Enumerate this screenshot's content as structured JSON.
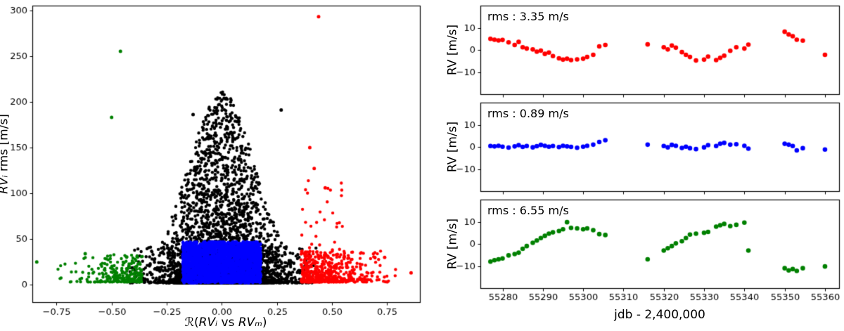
{
  "figure": {
    "background": "#ffffff",
    "text_color": "#000000"
  },
  "chart_data": [
    {
      "type": "scatter",
      "xlabel_parts": {
        "p1": "ℛ(",
        "p2": "RVᵢ",
        "p3": " vs ",
        "p4": "RVₘ",
        "p5": ")"
      },
      "ylabel_parts": {
        "italic": "RVᵢ",
        "rest": " rms [m/s]"
      },
      "xlim": [
        -0.86,
        0.9
      ],
      "ylim": [
        -19,
        305
      ],
      "xticks": {
        "values": [
          -0.75,
          -0.5,
          -0.25,
          0.0,
          0.25,
          0.5,
          0.75
        ],
        "labels": [
          "−0.75",
          "−0.50",
          "−0.25",
          "0.00",
          "0.25",
          "0.50",
          "0.75"
        ]
      },
      "yticks": {
        "values": [
          0,
          50,
          100,
          150,
          200,
          250,
          300
        ],
        "labels": [
          "0",
          "50",
          "100",
          "150",
          "200",
          "250",
          "300"
        ]
      },
      "marker_radius": 2.2,
      "colors": {
        "center": "#000000",
        "selected": "#0000ff",
        "left_tail": "#008000",
        "right_tail": "#ff0000"
      },
      "clusters": [
        {
          "name": "black-core",
          "color": "#000000",
          "n": 2600,
          "x": {
            "type": "gauss",
            "mu": 0,
            "sigma": 0.12,
            "clip": [
              -0.42,
              0.42
            ]
          },
          "y": {
            "type": "envelope",
            "base": 2,
            "floor": 14,
            "peak": 195,
            "width": 0.21,
            "pow": 2.6
          }
        },
        {
          "name": "black-skirt",
          "color": "#000000",
          "n": 1200,
          "x": {
            "type": "gauss",
            "mu": 0,
            "sigma": 0.2,
            "clip": [
              -0.43,
              0.43
            ]
          },
          "y": {
            "type": "power",
            "base": 2,
            "range": 40,
            "pow": 1.8
          }
        },
        {
          "name": "green-tail",
          "color": "#008000",
          "n": 240,
          "x": {
            "type": "halfgauss",
            "start": -0.36,
            "sigma": 0.14,
            "dir": -1,
            "clip": [
              -0.88,
              -0.35
            ]
          },
          "y": {
            "type": "power",
            "base": 3,
            "range": 30,
            "pow": 2.2
          }
        },
        {
          "name": "red-tail",
          "color": "#ff0000",
          "n": 520,
          "x": {
            "type": "halfgauss",
            "start": 0.36,
            "sigma": 0.15,
            "dir": 1,
            "clip": [
              0.35,
              0.88
            ]
          },
          "y": {
            "type": "power",
            "base": 3,
            "range": 34,
            "pow": 2.2
          }
        },
        {
          "name": "red-rise",
          "color": "#ff0000",
          "n": 55,
          "x": {
            "type": "uniform",
            "min": 0.36,
            "max": 0.56
          },
          "y": {
            "type": "power",
            "base": 5,
            "range": 110,
            "pow": 2.0
          }
        },
        {
          "name": "blue-block",
          "color": "#0000ff",
          "n": 2600,
          "x": {
            "type": "uniform",
            "min": -0.178,
            "max": 0.178
          },
          "y": {
            "type": "power",
            "base": 2,
            "range": 45,
            "pow": 1.0
          }
        }
      ],
      "outliers": [
        {
          "x": 0.02,
          "y": 203,
          "color": "#000000"
        },
        {
          "x": 0.27,
          "y": 191,
          "color": "#000000"
        },
        {
          "x": -0.13,
          "y": 186,
          "color": "#000000"
        },
        {
          "x": -0.46,
          "y": 255,
          "color": "#008000"
        },
        {
          "x": -0.5,
          "y": 183,
          "color": "#008000"
        },
        {
          "x": -0.84,
          "y": 25,
          "color": "#008000"
        },
        {
          "x": -0.62,
          "y": 34,
          "color": "#008000"
        },
        {
          "x": 0.44,
          "y": 293,
          "color": "#ff0000"
        },
        {
          "x": 0.4,
          "y": 150,
          "color": "#ff0000"
        },
        {
          "x": 0.42,
          "y": 127,
          "color": "#ff0000"
        },
        {
          "x": 0.47,
          "y": 106,
          "color": "#ff0000"
        },
        {
          "x": 0.86,
          "y": 13,
          "color": "#ff0000"
        },
        {
          "x": 0.74,
          "y": 30,
          "color": "#ff0000"
        }
      ]
    },
    {
      "type": "scatter",
      "xlabel": "jdb - 2,400,000",
      "ylabel": "RV [m/s]",
      "xlim": [
        55274.5,
        55363.5
      ],
      "xticks": {
        "values": [
          55280,
          55290,
          55300,
          55310,
          55320,
          55330,
          55340,
          55350,
          55360
        ],
        "labels": [
          "55280",
          "55290",
          "55300",
          "55310",
          "55320",
          "55330",
          "55340",
          "55350",
          "55360"
        ]
      },
      "yticks": {
        "values": [
          -10,
          0,
          10
        ],
        "labels": [
          "−10",
          "0",
          "10"
        ]
      },
      "marker_radius": 3.3,
      "x": [
        55277,
        55278,
        55279,
        55280,
        55281.5,
        55283,
        55284,
        55285,
        55286,
        55287.5,
        55288.5,
        55289.5,
        55290.5,
        55291.5,
        55292.5,
        55294,
        55295,
        55296,
        55297,
        55298.5,
        55300,
        55301,
        55302.5,
        55304,
        55305.5,
        55316,
        55320,
        55321,
        55322,
        55323,
        55324.5,
        55325.5,
        55326.5,
        55328,
        55330,
        55331,
        55333,
        55334,
        55335,
        55336.5,
        55338,
        55340,
        55341,
        55350,
        55351,
        55352,
        55353,
        55354.5,
        55360
      ],
      "panels": [
        {
          "name": "raw-rv",
          "color": "#ff0000",
          "rms_label": "rms : 3.35 m/s",
          "ylim": [
            -20,
            20
          ],
          "values": [
            5.0,
            4.6,
            4.3,
            4.5,
            3.4,
            2.2,
            3.6,
            1.2,
            0.6,
            0.2,
            -0.8,
            -0.3,
            -1.8,
            -1.2,
            -2.8,
            -3.8,
            -4.4,
            -4.0,
            -4.6,
            -4.3,
            -4.0,
            -3.2,
            -2.2,
            1.6,
            2.2,
            2.5,
            1.2,
            0.2,
            2.0,
            1.0,
            -1.0,
            -2.2,
            -3.2,
            -4.8,
            -4.4,
            -3.0,
            -4.6,
            -3.6,
            -2.6,
            -0.4,
            1.2,
            0.6,
            2.4,
            8.2,
            7.0,
            6.2,
            4.6,
            4.2,
            -2.2
          ]
        },
        {
          "name": "corrected-rv",
          "color": "#0000ff",
          "rms_label": "rms : 0.89 m/s",
          "ylim": [
            -20,
            20
          ],
          "values": [
            0.4,
            0.2,
            0.5,
            0.1,
            -0.3,
            0.2,
            0.8,
            0.0,
            0.4,
            -0.2,
            0.3,
            0.9,
            0.5,
            0.1,
            0.4,
            -0.1,
            0.5,
            0.2,
            0.0,
            -0.4,
            0.1,
            0.5,
            1.0,
            2.2,
            3.0,
            1.0,
            0.4,
            -0.2,
            0.9,
            0.5,
            -0.5,
            0.1,
            -0.6,
            -1.0,
            -0.2,
            0.8,
            0.4,
            1.4,
            1.8,
            1.0,
            1.2,
            0.5,
            -0.8,
            1.4,
            1.0,
            0.4,
            -1.6,
            -0.6,
            -1.2
          ]
        },
        {
          "name": "activity-rv",
          "color": "#008000",
          "rms_label": "rms : 6.55 m/s",
          "ylim": [
            -20,
            20
          ],
          "values": [
            -8.0,
            -7.4,
            -7.0,
            -6.6,
            -5.2,
            -4.6,
            -4.0,
            -2.2,
            -1.0,
            0.5,
            1.5,
            2.6,
            3.6,
            4.6,
            5.2,
            5.8,
            6.6,
            9.8,
            7.2,
            7.0,
            6.6,
            7.0,
            6.2,
            4.4,
            4.0,
            -7.0,
            -3.0,
            -2.0,
            -1.0,
            0.2,
            1.2,
            2.6,
            4.2,
            4.6,
            5.0,
            5.4,
            7.8,
            8.4,
            9.0,
            8.0,
            8.6,
            9.6,
            -3.0,
            -11.0,
            -12.0,
            -11.4,
            -12.2,
            -11.0,
            -10.2
          ]
        }
      ]
    }
  ]
}
